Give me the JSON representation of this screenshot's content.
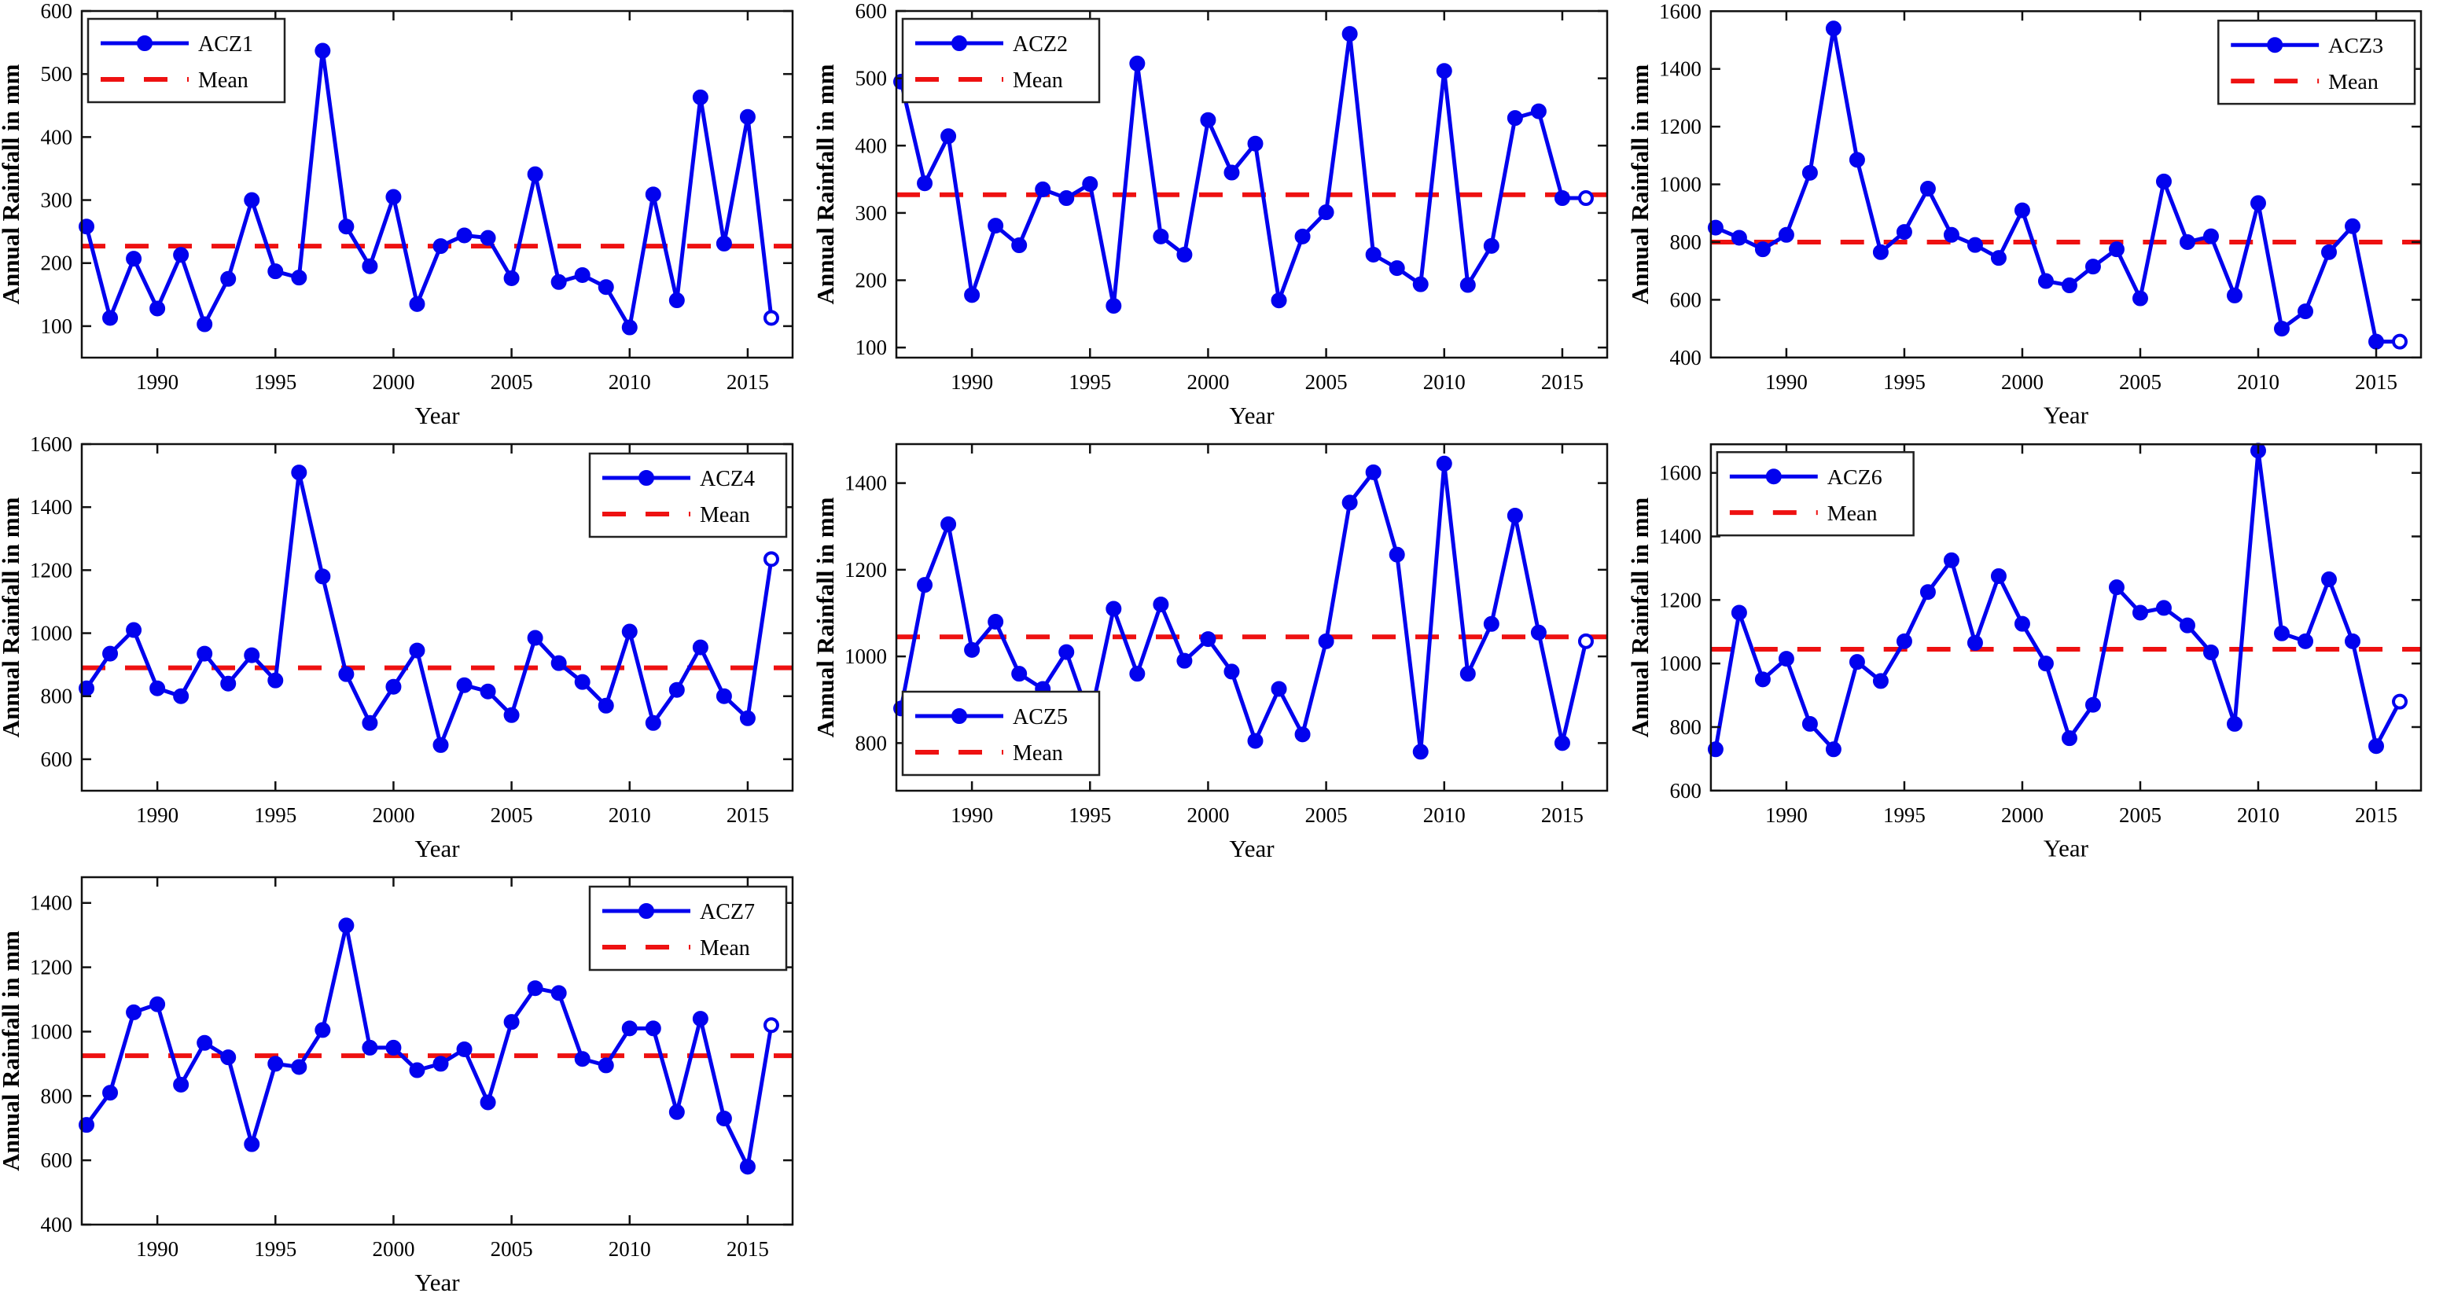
{
  "figure": {
    "background": "#ffffff",
    "axis_color": "#111111",
    "text_color": "#000000"
  },
  "chart_data": {
    "type": "line",
    "title": "",
    "xlabel": "Year",
    "ylabel": "Annual Rainfall in mm",
    "legend_mean_label": "Mean",
    "grid": false,
    "series_color": "#0202EE",
    "mean_color": "#EE1111",
    "x_years": [
      1987,
      1988,
      1989,
      1990,
      1991,
      1992,
      1993,
      1994,
      1995,
      1996,
      1997,
      1998,
      1999,
      2000,
      2001,
      2002,
      2003,
      2004,
      2005,
      2006,
      2007,
      2008,
      2009,
      2010,
      2011,
      2012,
      2013,
      2014,
      2015,
      2016
    ],
    "x_ticks": [
      1990,
      1995,
      2000,
      2005,
      2010,
      2015
    ],
    "xlim": [
      1986.8,
      2016.9
    ],
    "charts": [
      {
        "name": "ACZ1",
        "values": [
          258,
          113,
          207,
          128,
          213,
          103,
          175,
          300,
          187,
          177,
          537,
          258,
          195,
          305,
          135,
          227,
          244,
          240,
          176,
          341,
          170,
          181,
          162,
          98,
          309,
          141,
          463,
          231,
          432,
          113
        ],
        "mean": 227,
        "ylim": [
          50,
          600
        ],
        "yticks": [
          100,
          200,
          300,
          400,
          500,
          600
        ],
        "legend_pos": "top-left"
      },
      {
        "name": "ACZ2",
        "values": [
          495,
          344,
          414,
          178,
          281,
          252,
          335,
          322,
          343,
          162,
          522,
          265,
          238,
          438,
          360,
          403,
          170,
          265,
          301,
          566,
          238,
          218,
          194,
          511,
          193,
          251,
          441,
          451,
          322,
          322
        ],
        "mean": 327,
        "ylim": [
          85,
          600
        ],
        "yticks": [
          100,
          200,
          300,
          400,
          500,
          600
        ],
        "legend_pos": "top-left"
      },
      {
        "name": "ACZ3",
        "values": [
          850,
          815,
          775,
          825,
          1040,
          1540,
          1085,
          765,
          835,
          985,
          825,
          790,
          745,
          910,
          665,
          650,
          715,
          775,
          605,
          1010,
          800,
          820,
          615,
          935,
          500,
          560,
          765,
          855,
          455,
          455
        ],
        "mean": 800,
        "ylim": [
          400,
          1600
        ],
        "yticks": [
          400,
          600,
          800,
          1000,
          1200,
          1400,
          1600
        ],
        "legend_pos": "top-right"
      },
      {
        "name": "ACZ4",
        "values": [
          825,
          935,
          1010,
          825,
          800,
          935,
          840,
          930,
          850,
          1510,
          1180,
          870,
          715,
          830,
          945,
          645,
          835,
          815,
          740,
          985,
          905,
          845,
          770,
          1005,
          715,
          820,
          955,
          800,
          730,
          1235
        ],
        "mean": 890,
        "ylim": [
          500,
          1600
        ],
        "yticks": [
          600,
          800,
          1000,
          1200,
          1400,
          1600
        ],
        "legend_pos": "top-right"
      },
      {
        "name": "ACZ5",
        "values": [
          880,
          1165,
          1305,
          1015,
          1080,
          960,
          925,
          1010,
          855,
          1110,
          960,
          1120,
          990,
          1040,
          965,
          805,
          925,
          820,
          1035,
          1355,
          1425,
          1235,
          780,
          1445,
          960,
          1075,
          1325,
          1055,
          800,
          1035
        ],
        "mean": 1045,
        "ylim": [
          690,
          1490
        ],
        "yticks": [
          800,
          1000,
          1200,
          1400
        ],
        "legend_pos": "bottom-left"
      },
      {
        "name": "ACZ6",
        "values": [
          730,
          1160,
          950,
          1015,
          810,
          730,
          1005,
          945,
          1070,
          1225,
          1325,
          1065,
          1275,
          1125,
          1000,
          765,
          870,
          1240,
          1160,
          1175,
          1120,
          1035,
          810,
          1670,
          1095,
          1070,
          1265,
          1070,
          740,
          880
        ],
        "mean": 1045,
        "ylim": [
          600,
          1690
        ],
        "yticks": [
          600,
          800,
          1000,
          1200,
          1400,
          1600
        ],
        "legend_pos": "top-left"
      },
      {
        "name": "ACZ7",
        "values": [
          710,
          810,
          1060,
          1085,
          835,
          965,
          920,
          650,
          900,
          890,
          1005,
          1330,
          950,
          950,
          880,
          900,
          945,
          780,
          1030,
          1135,
          1120,
          915,
          895,
          1010,
          1010,
          750,
          1040,
          730,
          580,
          1020
        ],
        "mean": 925,
        "ylim": [
          400,
          1480
        ],
        "yticks": [
          400,
          600,
          800,
          1000,
          1200,
          1400
        ],
        "legend_pos": "top-right"
      }
    ]
  }
}
